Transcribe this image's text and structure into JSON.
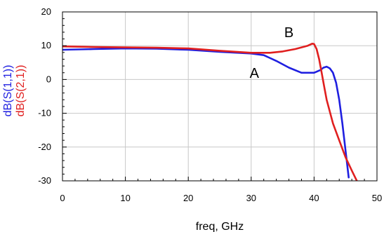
{
  "chart_data": {
    "type": "line",
    "xlabel": "freq, GHz",
    "ylabels": [
      {
        "text": "dB(S(1,1))",
        "color": "#1f1fe0"
      },
      {
        "text": "dB(S(2,1))",
        "color": "#e01f1f"
      }
    ],
    "xlim": [
      0,
      50
    ],
    "ylim": [
      -30,
      20
    ],
    "xticks": [
      0,
      10,
      20,
      30,
      40,
      50
    ],
    "yticks": [
      -30,
      -20,
      -10,
      0,
      10,
      20
    ],
    "grid": true,
    "series": [
      {
        "color": "#1f1fe0",
        "x": [
          0,
          5,
          10,
          15,
          20,
          25,
          30,
          32,
          34,
          36,
          38,
          40,
          41,
          41.5,
          42,
          42.5,
          43,
          43.5,
          44,
          44.5,
          45,
          45.5
        ],
        "y": [
          8.8,
          9.0,
          9.2,
          9.1,
          8.8,
          8.2,
          7.7,
          7.2,
          5.5,
          3.5,
          2.0,
          2.0,
          2.8,
          3.5,
          3.8,
          3.3,
          2.0,
          -1.0,
          -6.0,
          -13.0,
          -21.0,
          -29.0
        ]
      },
      {
        "color": "#e01f1f",
        "x": [
          0,
          5,
          10,
          15,
          20,
          25,
          30,
          33,
          35,
          37,
          39,
          39.7,
          40,
          40.4,
          40.8,
          41.2,
          41.6,
          42,
          43,
          44,
          45,
          46,
          46.8
        ],
        "y": [
          9.8,
          9.6,
          9.5,
          9.4,
          9.2,
          8.5,
          7.9,
          7.9,
          8.3,
          9.0,
          10.0,
          10.6,
          10.5,
          9.0,
          6.0,
          2.0,
          -2.0,
          -6.0,
          -13.0,
          -18.0,
          -23.0,
          -27.0,
          -30.0
        ]
      }
    ],
    "annotations": [
      {
        "text": "A",
        "x": 30.5,
        "y": 0.5
      },
      {
        "text": "B",
        "x": 36,
        "y": 12.5
      }
    ]
  }
}
